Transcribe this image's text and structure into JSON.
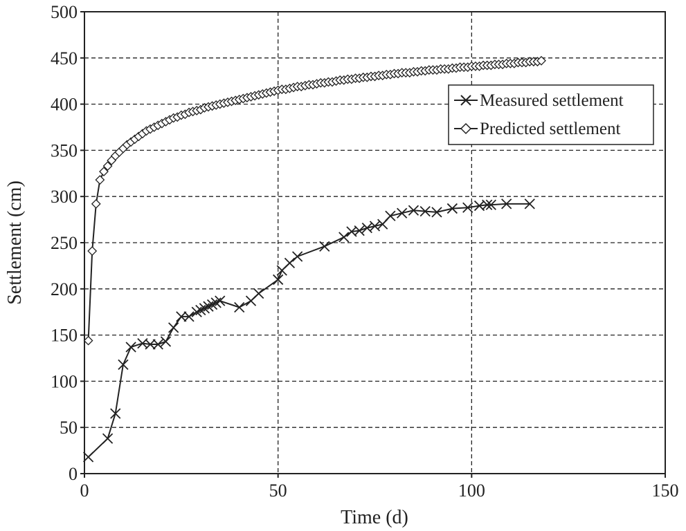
{
  "chart_data": {
    "type": "line",
    "xlabel": "Time (d)",
    "ylabel": "Settlement (cm)",
    "xlim": [
      0,
      150
    ],
    "ylim": [
      0,
      500
    ],
    "xticks": [
      0,
      50,
      100,
      150
    ],
    "yticks": [
      0,
      50,
      100,
      150,
      200,
      250,
      300,
      350,
      400,
      450,
      500
    ],
    "grid": true,
    "legend_position": "top-right",
    "series": [
      {
        "name": "Measured settlement",
        "marker": "x",
        "x": [
          1,
          6,
          8,
          10,
          12,
          15,
          17,
          19,
          21,
          23,
          25,
          27,
          29,
          30,
          31,
          32,
          33,
          34,
          35,
          40,
          43,
          45,
          50,
          51,
          53,
          55,
          62,
          67,
          69,
          71,
          73,
          75,
          77,
          79,
          82,
          85,
          88,
          91,
          95,
          99,
          102,
          104,
          105,
          109,
          115
        ],
        "y": [
          18,
          38,
          65,
          118,
          137,
          141,
          140,
          140,
          143,
          158,
          170,
          170,
          175,
          177,
          179,
          181,
          183,
          185,
          187,
          180,
          187,
          195,
          210,
          220,
          228,
          235,
          246,
          256,
          262,
          263,
          266,
          268,
          270,
          279,
          282,
          285,
          284,
          283,
          287,
          288,
          290,
          291,
          291,
          292,
          292
        ]
      },
      {
        "name": "Predicted settlement",
        "marker": "diamond",
        "x": [
          1,
          2,
          3,
          4,
          5,
          6,
          7,
          8,
          9,
          10,
          11,
          12,
          13,
          14,
          15,
          16,
          17,
          18,
          19,
          20,
          21,
          22,
          23,
          24,
          25,
          26,
          27,
          28,
          29,
          30,
          31,
          32,
          33,
          34,
          35,
          36,
          37,
          38,
          39,
          40,
          41,
          42,
          43,
          44,
          45,
          46,
          47,
          48,
          49,
          50,
          51,
          52,
          53,
          54,
          55,
          56,
          57,
          58,
          59,
          60,
          61,
          62,
          63,
          64,
          65,
          66,
          67,
          68,
          69,
          70,
          71,
          72,
          73,
          74,
          75,
          76,
          77,
          78,
          79,
          80,
          81,
          82,
          83,
          84,
          85,
          86,
          87,
          88,
          89,
          90,
          91,
          92,
          93,
          94,
          95,
          96,
          97,
          98,
          99,
          100,
          101,
          102,
          103,
          104,
          105,
          106,
          107,
          108,
          109,
          110,
          111,
          112,
          113,
          114,
          115,
          116,
          117,
          118
        ],
        "y": [
          144,
          241,
          292,
          318,
          327,
          333,
          339,
          344,
          348,
          352,
          356,
          359,
          362,
          365,
          368,
          371,
          373,
          375,
          377,
          379,
          381,
          383,
          385,
          386,
          388,
          389,
          391,
          392,
          393,
          394,
          396,
          397,
          398,
          399,
          400,
          401,
          402,
          403,
          404,
          405,
          406,
          407,
          408,
          409,
          410,
          411,
          412,
          413,
          414,
          415,
          416,
          416,
          417,
          418,
          419,
          419,
          420,
          421,
          421,
          422,
          423,
          423,
          424,
          424,
          425,
          426,
          426,
          427,
          427,
          428,
          428,
          429,
          429,
          430,
          430,
          431,
          431,
          432,
          432,
          433,
          433,
          434,
          434,
          434,
          435,
          435,
          436,
          436,
          437,
          437,
          437,
          438,
          438,
          438,
          439,
          439,
          440,
          440,
          440,
          441,
          441,
          441,
          442,
          442,
          442,
          443,
          443,
          443,
          444,
          444,
          444,
          445,
          445,
          445,
          446,
          446,
          446,
          447
        ]
      }
    ]
  }
}
